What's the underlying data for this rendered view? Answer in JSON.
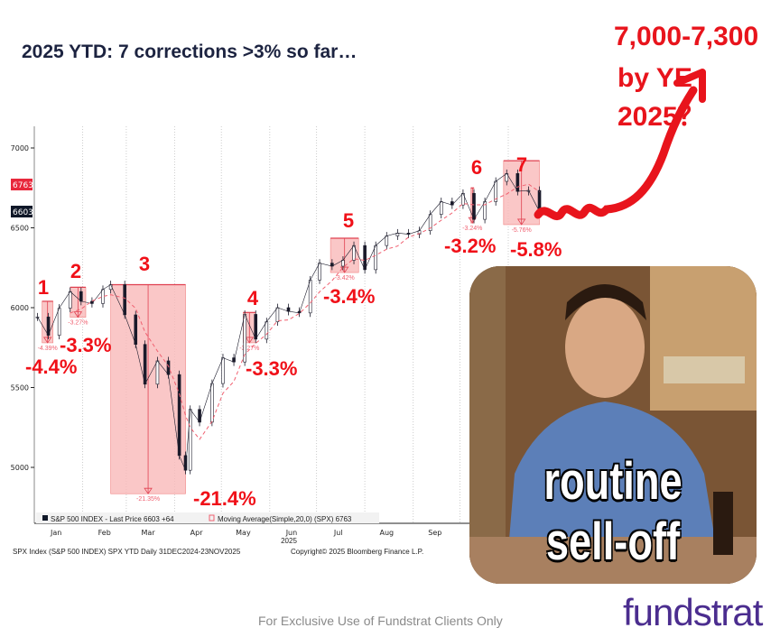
{
  "title": "2025 YTD: 7 corrections >3% so far…",
  "target_line1": "7,000-7,300",
  "target_line2": "by YE 2025？",
  "footer": "For Exclusive Use of Fundstrat Clients Only",
  "logo": "fundstrat",
  "meme": {
    "caption1": "routine",
    "caption2": "sell-off"
  },
  "colors": {
    "accent_red": "#e8141c",
    "box": "#f9b9b9",
    "price": "#1a1a2a",
    "ma": "#f06070",
    "logo": "#4b2d8f"
  },
  "chart_data": {
    "type": "line",
    "ylim": [
      4700,
      7150
    ],
    "yticks": [
      5000,
      5500,
      6000,
      6500,
      7000
    ],
    "xticks": [
      "Jan",
      "Feb",
      "Mar",
      "Apr",
      "May",
      "Jun",
      "Jul",
      "Aug",
      "Sep"
    ],
    "year_label": "2025",
    "price_tags": {
      "ma": "6763",
      "last": "6603"
    },
    "legend": {
      "series1": "S&P 500 INDEX - Last Price 6603  +64",
      "series2": "Moving Average(Simple,20,0) (SPX) 6763"
    },
    "source": "SPX Index (S&P 500 INDEX) SPX YTD Daily 31DEC2024-23NOV2025",
    "copyright": "Copyright© 2025 Bloomberg Finance L.P.",
    "series": [
      {
        "name": "S&P 500 INDEX - Last Price",
        "x": [
          "2025-01-03",
          "2025-01-10",
          "2025-01-17",
          "2025-01-24",
          "2025-01-31",
          "2025-02-07",
          "2025-02-14",
          "2025-02-19",
          "2025-02-28",
          "2025-03-07",
          "2025-03-13",
          "2025-03-21",
          "2025-03-28",
          "2025-04-04",
          "2025-04-08",
          "2025-04-11",
          "2025-04-17",
          "2025-04-25",
          "2025-05-02",
          "2025-05-09",
          "2025-05-16",
          "2025-05-23",
          "2025-05-30",
          "2025-06-06",
          "2025-06-13",
          "2025-06-20",
          "2025-06-27",
          "2025-07-03",
          "2025-07-11",
          "2025-07-18",
          "2025-07-25",
          "2025-08-01",
          "2025-08-08",
          "2025-08-15",
          "2025-08-22",
          "2025-08-29",
          "2025-09-05",
          "2025-09-12",
          "2025-09-19",
          "2025-09-26",
          "2025-10-03",
          "2025-10-10",
          "2025-10-17",
          "2025-10-24",
          "2025-10-31",
          "2025-11-07",
          "2025-11-14",
          "2025-11-21"
        ],
        "values": [
          5942,
          5827,
          5997,
          6101,
          6040,
          6026,
          6114,
          6144,
          5955,
          5770,
          5521,
          5667,
          5581,
          5074,
          4982,
          5363,
          5283,
          5525,
          5686,
          5660,
          5958,
          5803,
          5912,
          6000,
          5977,
          5967,
          6173,
          6279,
          6260,
          6297,
          6389,
          6238,
          6389,
          6449,
          6467,
          6460,
          6482,
          6584,
          6664,
          6643,
          6716,
          6553,
          6664,
          6791,
          6840,
          6728,
          6734,
          6603
        ]
      }
    ],
    "corrections": [
      {
        "n": "1",
        "start": "2025-01-06",
        "end": "2025-01-13",
        "peak": 6040,
        "trough": 5780,
        "pct": "-4.39%",
        "label": "-4.4%"
      },
      {
        "n": "2",
        "start": "2025-01-24",
        "end": "2025-02-03",
        "peak": 6128,
        "trough": 5940,
        "pct": "-3.27%",
        "label": "-3.3%"
      },
      {
        "n": "3",
        "start": "2025-02-19",
        "end": "2025-04-08",
        "peak": 6144,
        "trough": 4835,
        "pct": "-21.35%",
        "label": "-21.4%"
      },
      {
        "n": "4",
        "start": "2025-05-15",
        "end": "2025-05-23",
        "peak": 5970,
        "trough": 5780,
        "pct": "-3.27%",
        "label": "-3.3%"
      },
      {
        "n": "5",
        "start": "2025-07-10",
        "end": "2025-07-28",
        "peak": 6435,
        "trough": 6220,
        "pct": "-3.42%",
        "label": "-3.4%"
      },
      {
        "n": "6",
        "start": "2025-10-08",
        "end": "2025-10-10",
        "peak": 6750,
        "trough": 6530,
        "pct": "-3.24%",
        "label": "-3.2%"
      },
      {
        "n": "7",
        "start": "2025-10-29",
        "end": "2025-11-21",
        "peak": 6920,
        "trough": 6520,
        "pct": "-5.76%",
        "label": "-5.8%"
      }
    ]
  }
}
